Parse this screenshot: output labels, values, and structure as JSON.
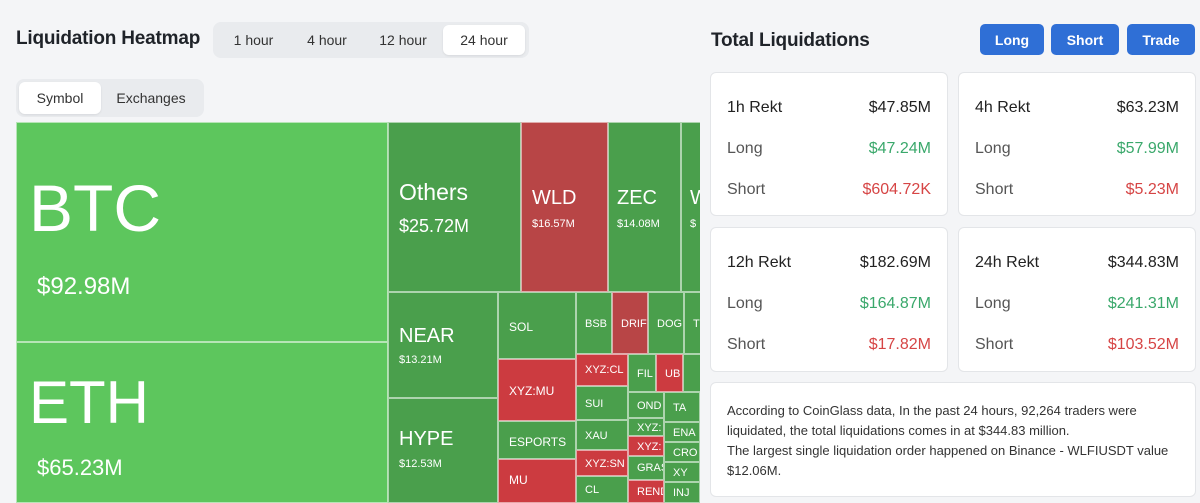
{
  "heatmap": {
    "title": "Liquidation Heatmap",
    "time_tabs": [
      {
        "label": "1 hour",
        "active": false
      },
      {
        "label": "4 hour",
        "active": false
      },
      {
        "label": "12 hour",
        "active": false
      },
      {
        "label": "24 hour",
        "active": true
      }
    ],
    "view_tabs": [
      {
        "label": "Symbol",
        "active": true
      },
      {
        "label": "Exchanges",
        "active": false
      }
    ],
    "tiles": {
      "btc": {
        "symbol": "BTC",
        "value": "$92.98M"
      },
      "eth": {
        "symbol": "ETH",
        "value": "$65.23M"
      },
      "others": {
        "symbol": "Others",
        "value": "$25.72M"
      },
      "wld": {
        "symbol": "WLD",
        "value": "$16.57M"
      },
      "zec": {
        "symbol": "ZEC",
        "value": "$14.08M"
      },
      "w": {
        "symbol": "W",
        "value": "$"
      },
      "near": {
        "symbol": "NEAR",
        "value": "$13.21M"
      },
      "hype": {
        "symbol": "HYPE",
        "value": "$12.53M"
      },
      "sol": {
        "symbol": "SOL"
      },
      "bsb": {
        "symbol": "BSB"
      },
      "drif": {
        "symbol": "DRIF"
      },
      "dog": {
        "symbol": "DOG"
      },
      "t": {
        "symbol": "T"
      },
      "xyzmu": {
        "symbol": "XYZ:MU"
      },
      "xyzcl": {
        "symbol": "XYZ:CL"
      },
      "fil": {
        "symbol": "FIL"
      },
      "ub": {
        "symbol": "UB"
      },
      "sui": {
        "symbol": "SUI"
      },
      "ond": {
        "symbol": "OND"
      },
      "ta": {
        "symbol": "TA"
      },
      "esports": {
        "symbol": "ESPORTS"
      },
      "xau": {
        "symbol": "XAU"
      },
      "xyz1": {
        "symbol": "XYZ:"
      },
      "xyz2": {
        "symbol": "XYZ:"
      },
      "ena": {
        "symbol": "ENA"
      },
      "cro": {
        "symbol": "CRO"
      },
      "xyzsn": {
        "symbol": "XYZ:SN"
      },
      "gras": {
        "symbol": "GRAS"
      },
      "xy": {
        "symbol": "XY"
      },
      "mu": {
        "symbol": "MU"
      },
      "cl": {
        "symbol": "CL"
      },
      "rend": {
        "symbol": "REND"
      },
      "inj": {
        "symbol": "INJ"
      }
    }
  },
  "total": {
    "title": "Total Liquidations",
    "buttons": {
      "long": "Long",
      "short": "Short",
      "trade": "Trade"
    },
    "cards": [
      {
        "head_label": "1h Rekt",
        "head_value": "$47.85M",
        "long_label": "Long",
        "long_value": "$47.24M",
        "short_label": "Short",
        "short_value": "$604.72K"
      },
      {
        "head_label": "4h Rekt",
        "head_value": "$63.23M",
        "long_label": "Long",
        "long_value": "$57.99M",
        "short_label": "Short",
        "short_value": "$5.23M"
      },
      {
        "head_label": "12h Rekt",
        "head_value": "$182.69M",
        "long_label": "Long",
        "long_value": "$164.87M",
        "short_label": "Short",
        "short_value": "$17.82M"
      },
      {
        "head_label": "24h Rekt",
        "head_value": "$344.83M",
        "long_label": "Long",
        "long_value": "$241.31M",
        "short_label": "Short",
        "short_value": "$103.52M"
      }
    ],
    "summary": {
      "line1": "According to CoinGlass data, In the past 24 hours, 92,264 traders were liquidated, the total liquidations comes in at $344.83 million.",
      "line2": "The largest single liquidation order happened on Binance - WLFIUSDT value $12.06M."
    }
  },
  "colors": {
    "long_green": "#3aa86b",
    "short_red": "#d64545",
    "accent_blue": "#2f6fd6",
    "tile_green": "#5dc65d",
    "tile_dark_green": "#4a9f4c",
    "tile_red": "#b84546"
  }
}
